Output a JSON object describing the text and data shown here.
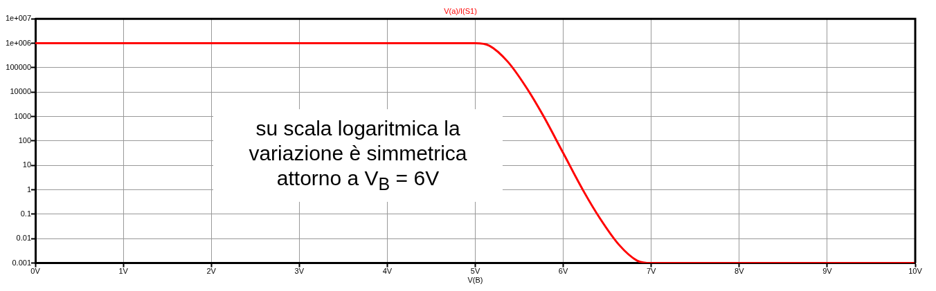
{
  "chart_data": {
    "type": "line",
    "title": "V(a)/I(S1)",
    "xlabel": "V(B)",
    "annotations": [
      "su scala logaritmica la variazione è simmetrica attorno a V$_{B}$ = 6V"
    ],
    "x": [
      0,
      5,
      5.16,
      5.37,
      5.58,
      5.77,
      6,
      6.23,
      6.42,
      6.63,
      6.84,
      7,
      10
    ],
    "series": [
      {
        "color": "#ff0000",
        "values": [
          1000000,
          1000000,
          794000,
          174000,
          15500,
          1120,
          31.6,
          0.89,
          0.065,
          0.0058,
          0.00126,
          0.001,
          0.001
        ]
      }
    ],
    "log": "y",
    "xlim": [
      0,
      10
    ],
    "ylim": [
      0.001,
      10000000
    ],
    "xticks": [
      {
        "value": 0,
        "label": "0V"
      },
      {
        "value": 1,
        "label": "1V"
      },
      {
        "value": 2,
        "label": "2V"
      },
      {
        "value": 3,
        "label": "3V"
      },
      {
        "value": 4,
        "label": "4V"
      },
      {
        "value": 5,
        "label": "5V"
      },
      {
        "value": 6,
        "label": "6V"
      },
      {
        "value": 7,
        "label": "7V"
      },
      {
        "value": 8,
        "label": "8V"
      },
      {
        "value": 9,
        "label": "9V"
      },
      {
        "value": 10,
        "label": "10V"
      }
    ],
    "yticks": [
      0.001,
      0.01,
      0.1,
      1,
      10,
      100,
      1000,
      10000,
      100000,
      {
        "value": 1000000,
        "label": "1e+006"
      },
      {
        "value": 10000000,
        "label": "1e+007"
      }
    ],
    "grid": true,
    "legend": false,
    "marker": "none",
    "line_style": "solid"
  }
}
